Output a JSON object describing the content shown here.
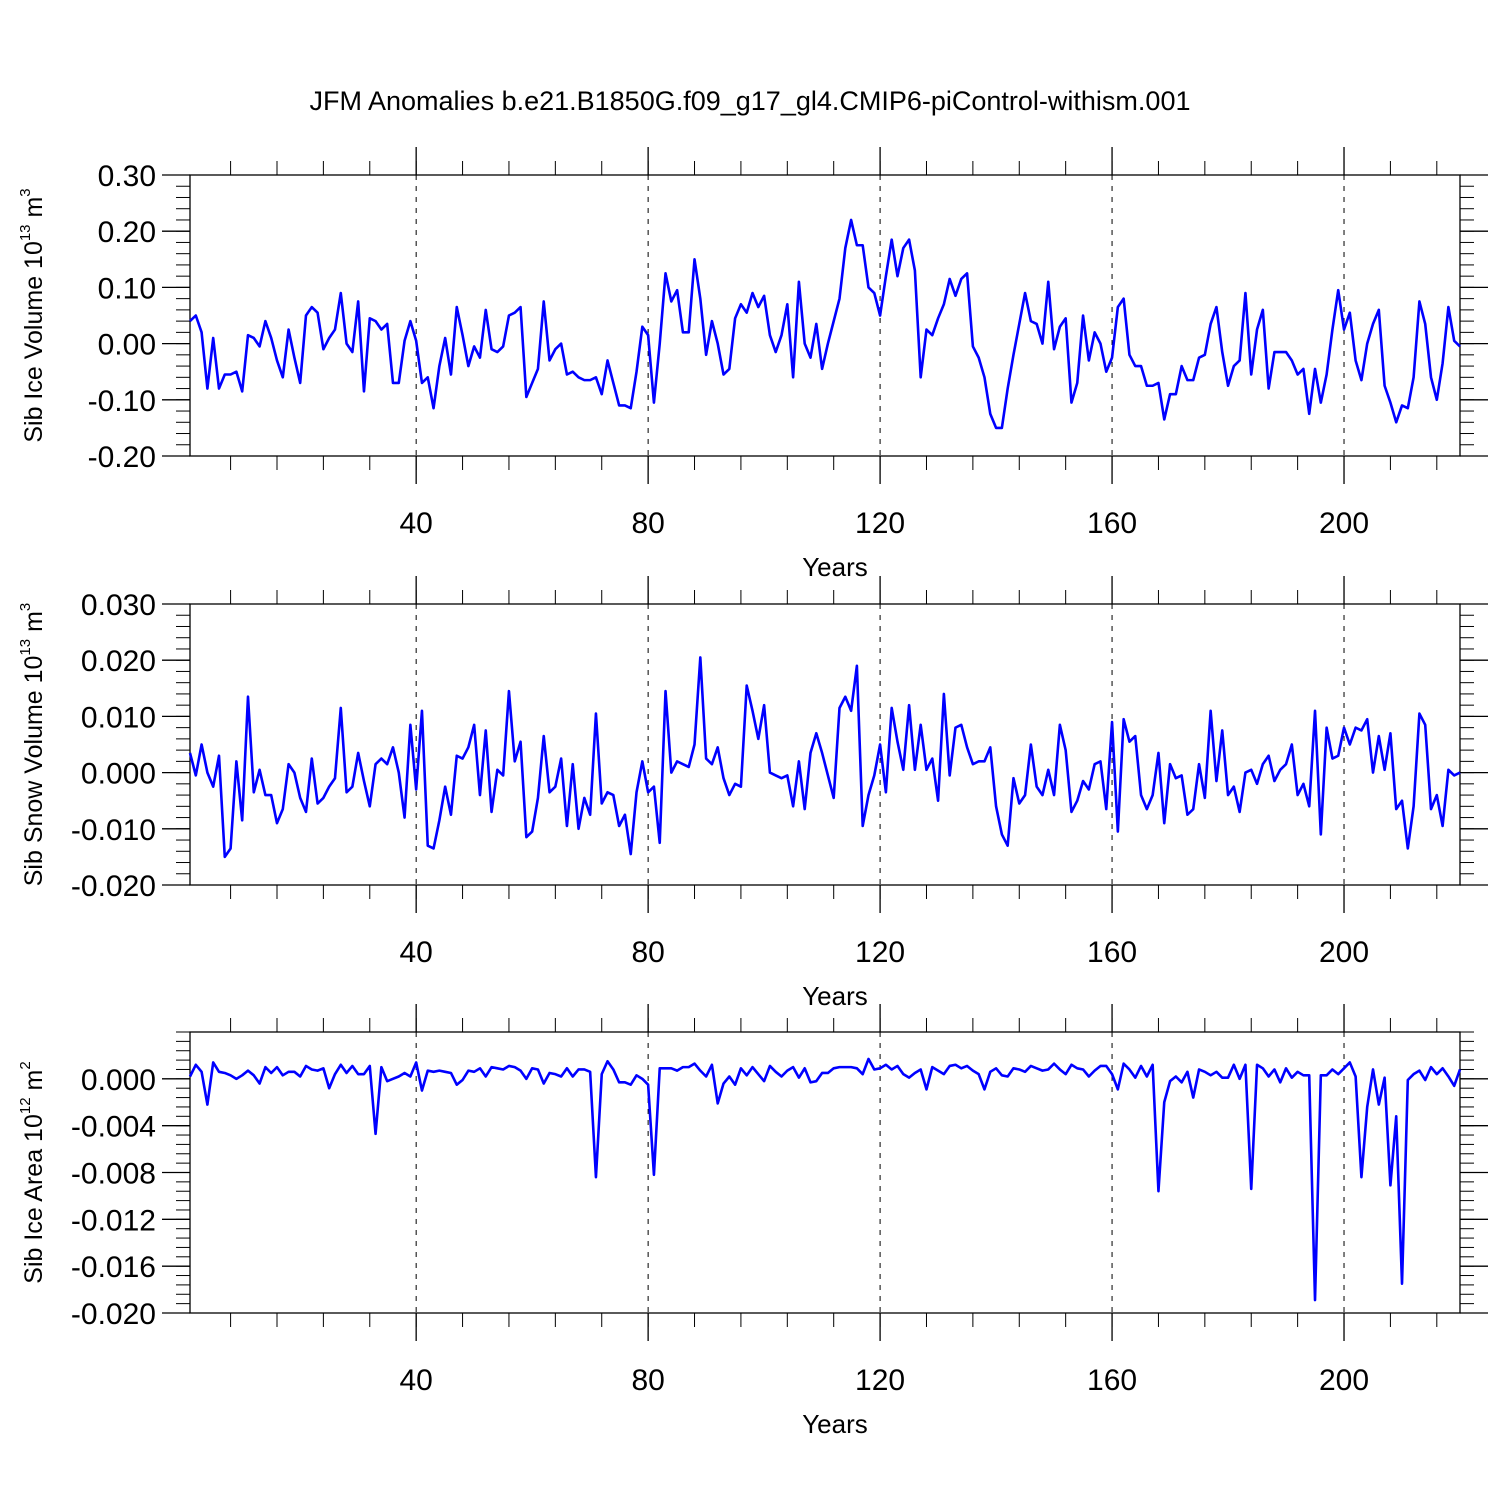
{
  "title": "JFM Anomalies b.e21.B1850G.f09_g17_gl4.CMIP6-piControl-withism.001",
  "chart_data": [
    {
      "type": "line",
      "title": "JFM Anomalies b.e21.B1850G.f09_g17_gl4.CMIP6-piControl-withism.001",
      "xlabel": "Years",
      "ylabel": {
        "base": "Sib Ice Volume 10",
        "exp": "13",
        "unit": " m",
        "unit_exp": "3"
      },
      "xlim": [
        1,
        220
      ],
      "ylim": [
        -0.2,
        0.3
      ],
      "xticks": [
        40,
        80,
        120,
        160,
        200
      ],
      "xtick_labels": [
        "40",
        "80",
        "120",
        "160",
        "200"
      ],
      "yticks": [
        -0.2,
        -0.1,
        0.0,
        0.1,
        0.2,
        0.3
      ],
      "ytick_labels": [
        "-0.20",
        "-0.10",
        "0.00",
        "0.10",
        "0.20",
        "0.30"
      ],
      "yminor_step": 0.02,
      "xminor_step": 8,
      "grid": "vertical-dashed",
      "color": "#0000ff",
      "x_start": 1,
      "values": [
        0.04,
        0.05,
        0.02,
        -0.08,
        0.01,
        -0.08,
        -0.055,
        -0.055,
        -0.05,
        -0.085,
        0.015,
        0.01,
        -0.005,
        0.04,
        0.01,
        -0.03,
        -0.06,
        0.025,
        -0.025,
        -0.07,
        0.05,
        0.065,
        0.055,
        -0.01,
        0.01,
        0.025,
        0.09,
        0.0,
        -0.015,
        0.075,
        -0.085,
        0.045,
        0.04,
        0.025,
        0.035,
        -0.07,
        -0.07,
        0.005,
        0.04,
        0.005,
        -0.07,
        -0.06,
        -0.115,
        -0.04,
        0.01,
        -0.055,
        0.065,
        0.015,
        -0.04,
        -0.005,
        -0.025,
        0.06,
        -0.01,
        -0.015,
        -0.005,
        0.05,
        0.055,
        0.065,
        -0.095,
        -0.07,
        -0.045,
        0.075,
        -0.03,
        -0.01,
        0.0,
        -0.055,
        -0.05,
        -0.06,
        -0.065,
        -0.065,
        -0.06,
        -0.09,
        -0.03,
        -0.07,
        -0.11,
        -0.11,
        -0.115,
        -0.05,
        0.03,
        0.015,
        -0.105,
        0.0,
        0.125,
        0.075,
        0.095,
        0.02,
        0.02,
        0.15,
        0.08,
        -0.02,
        0.04,
        0.0,
        -0.055,
        -0.045,
        0.045,
        0.07,
        0.055,
        0.09,
        0.065,
        0.085,
        0.015,
        -0.015,
        0.015,
        0.07,
        -0.06,
        0.11,
        0.0,
        -0.025,
        0.035,
        -0.045,
        0.0,
        0.04,
        0.08,
        0.17,
        0.22,
        0.175,
        0.175,
        0.1,
        0.09,
        0.05,
        0.12,
        0.185,
        0.12,
        0.17,
        0.185,
        0.13,
        -0.06,
        0.025,
        0.015,
        0.045,
        0.07,
        0.115,
        0.085,
        0.115,
        0.125,
        -0.005,
        -0.025,
        -0.06,
        -0.125,
        -0.15,
        -0.15,
        -0.08,
        -0.02,
        0.035,
        0.09,
        0.04,
        0.035,
        0.0,
        0.11,
        -0.01,
        0.03,
        0.045,
        -0.105,
        -0.07,
        0.05,
        -0.03,
        0.02,
        0.0,
        -0.05,
        -0.025,
        0.065,
        0.08,
        -0.02,
        -0.04,
        -0.04,
        -0.075,
        -0.075,
        -0.07,
        -0.135,
        -0.09,
        -0.09,
        -0.04,
        -0.065,
        -0.065,
        -0.025,
        -0.02,
        0.035,
        0.065,
        -0.015,
        -0.075,
        -0.04,
        -0.03,
        0.09,
        -0.055,
        0.025,
        0.06,
        -0.08,
        -0.015,
        -0.015,
        -0.015,
        -0.03,
        -0.055,
        -0.045,
        -0.125,
        -0.045,
        -0.105,
        -0.055,
        0.025,
        0.095,
        0.025,
        0.055,
        -0.03,
        -0.065,
        0.0,
        0.035,
        0.06,
        -0.075,
        -0.105,
        -0.14,
        -0.11,
        -0.115,
        -0.06,
        0.075,
        0.035,
        -0.06,
        -0.1,
        -0.035,
        0.065,
        0.005,
        -0.005
      ]
    },
    {
      "type": "line",
      "xlabel": "Years",
      "ylabel": {
        "base": "Sib Snow Volume 10",
        "exp": "13",
        "unit": " m",
        "unit_exp": "3"
      },
      "xlim": [
        1,
        220
      ],
      "ylim": [
        -0.02,
        0.03
      ],
      "xticks": [
        40,
        80,
        120,
        160,
        200
      ],
      "xtick_labels": [
        "40",
        "80",
        "120",
        "160",
        "200"
      ],
      "yticks": [
        -0.02,
        -0.01,
        0.0,
        0.01,
        0.02,
        0.03
      ],
      "ytick_labels": [
        "-0.020",
        "-0.010",
        "0.000",
        "0.010",
        "0.020",
        "0.030"
      ],
      "yminor_step": 0.002,
      "xminor_step": 8,
      "grid": "vertical-dashed",
      "color": "#0000ff",
      "x_start": 1,
      "values": [
        0.0035,
        -0.0005,
        0.005,
        0.0,
        -0.0025,
        0.003,
        -0.015,
        -0.0135,
        0.002,
        -0.0085,
        0.0135,
        -0.0035,
        0.0005,
        -0.004,
        -0.004,
        -0.009,
        -0.0065,
        0.0015,
        0.0,
        -0.0045,
        -0.007,
        0.0025,
        -0.0055,
        -0.0045,
        -0.0025,
        -0.001,
        0.0115,
        -0.0035,
        -0.0025,
        0.0035,
        -0.0015,
        -0.006,
        0.0015,
        0.0025,
        0.0015,
        0.0045,
        0.0,
        -0.008,
        0.0085,
        -0.003,
        0.011,
        -0.013,
        -0.0135,
        -0.0085,
        -0.0025,
        -0.0075,
        0.003,
        0.0025,
        0.0045,
        0.0085,
        -0.004,
        0.0075,
        -0.007,
        0.0005,
        -0.0005,
        0.0145,
        0.002,
        0.0055,
        -0.0115,
        -0.0105,
        -0.0045,
        0.0065,
        -0.0035,
        -0.0025,
        0.0025,
        -0.0095,
        0.0015,
        -0.01,
        -0.0045,
        -0.0075,
        0.0105,
        -0.0055,
        -0.0035,
        -0.004,
        -0.0095,
        -0.0075,
        -0.0145,
        -0.0035,
        0.002,
        -0.0035,
        -0.0025,
        -0.0125,
        0.0145,
        0.0,
        0.002,
        0.0015,
        0.001,
        0.005,
        0.0205,
        0.0025,
        0.0015,
        0.0045,
        -0.001,
        -0.004,
        -0.002,
        -0.0025,
        0.0155,
        0.011,
        0.006,
        0.012,
        0.0,
        -0.0005,
        -0.001,
        -0.0005,
        -0.006,
        0.002,
        -0.0065,
        0.0035,
        0.007,
        0.0035,
        -0.0005,
        -0.0045,
        0.0115,
        0.0135,
        0.011,
        0.019,
        -0.0095,
        -0.004,
        -0.0005,
        0.005,
        -0.0035,
        0.0115,
        0.0055,
        0.0005,
        0.012,
        0.0005,
        0.0085,
        0.0005,
        0.0025,
        -0.005,
        0.014,
        -0.0005,
        0.008,
        0.0085,
        0.0045,
        0.0015,
        0.002,
        0.002,
        0.0045,
        -0.006,
        -0.011,
        -0.013,
        -0.001,
        -0.0055,
        -0.004,
        0.005,
        -0.0025,
        -0.004,
        0.0005,
        -0.004,
        0.0085,
        0.004,
        -0.007,
        -0.005,
        -0.0015,
        -0.003,
        0.0015,
        0.002,
        -0.0065,
        0.009,
        -0.0105,
        0.0095,
        0.0055,
        0.0065,
        -0.004,
        -0.0065,
        -0.004,
        0.0035,
        -0.009,
        0.0015,
        -0.001,
        -0.0005,
        -0.0075,
        -0.0065,
        0.0015,
        -0.0045,
        0.011,
        -0.0015,
        0.0075,
        -0.004,
        -0.0025,
        -0.007,
        0.0,
        0.0005,
        -0.002,
        0.0015,
        0.003,
        -0.0015,
        0.0005,
        0.0015,
        0.005,
        -0.004,
        -0.002,
        -0.006,
        0.011,
        -0.011,
        0.008,
        0.0025,
        0.003,
        0.008,
        0.005,
        0.008,
        0.0075,
        0.0095,
        0.0,
        0.0065,
        0.0005,
        0.007,
        -0.0065,
        -0.005,
        -0.0135,
        -0.006,
        0.0105,
        0.0085,
        -0.0065,
        -0.004,
        -0.0095,
        0.0005,
        -0.0005,
        0.0
      ]
    },
    {
      "type": "line",
      "xlabel": "Years",
      "ylabel": {
        "base": "Sib Ice Area 10",
        "exp": "12",
        "unit": " m",
        "unit_exp": "2"
      },
      "xlim": [
        1,
        220
      ],
      "ylim": [
        -0.02,
        0.004
      ],
      "xticks": [
        40,
        80,
        120,
        160,
        200
      ],
      "xtick_labels": [
        "40",
        "80",
        "120",
        "160",
        "200"
      ],
      "yticks": [
        -0.02,
        -0.016,
        -0.012,
        -0.008,
        -0.004,
        0.0
      ],
      "ytick_labels": [
        "-0.020",
        "-0.016",
        "-0.012",
        "-0.008",
        "-0.004",
        "0.000"
      ],
      "yminor_step": 0.0008,
      "xminor_step": 8,
      "grid": "vertical-dashed",
      "color": "#0000ff",
      "x_start": 1,
      "values": [
        0.0002,
        0.0012,
        0.0006,
        -0.0022,
        0.0014,
        0.0006,
        0.0005,
        0.0003,
        0.0,
        0.0003,
        0.0007,
        0.0003,
        -0.0004,
        0.001,
        0.0005,
        0.001,
        0.0003,
        0.0006,
        0.0006,
        0.0002,
        0.0011,
        0.0008,
        0.0007,
        0.0009,
        -0.0008,
        0.0004,
        0.0012,
        0.0005,
        0.0011,
        0.0004,
        0.0004,
        0.0011,
        -0.0047,
        0.001,
        -0.0002,
        0.0,
        0.0002,
        0.0005,
        0.0002,
        0.0014,
        -0.001,
        0.0007,
        0.0006,
        0.0007,
        0.0006,
        0.0005,
        -0.0005,
        -0.0001,
        0.0007,
        0.0006,
        0.0009,
        0.0002,
        0.001,
        0.0009,
        0.0008,
        0.0011,
        0.001,
        0.0007,
        0.0,
        0.0009,
        0.0008,
        -0.0004,
        0.0005,
        0.0004,
        0.0002,
        0.0009,
        0.0002,
        0.0008,
        0.0008,
        0.0006,
        -0.0084,
        0.0004,
        0.0015,
        0.0008,
        -0.0003,
        -0.0003,
        -0.0005,
        0.0003,
        0.0,
        -0.0005,
        -0.0082,
        0.0009,
        0.0009,
        0.0009,
        0.0007,
        0.001,
        0.001,
        0.0013,
        0.0007,
        0.0002,
        0.0012,
        -0.0021,
        -0.0004,
        0.0002,
        -0.0005,
        0.0009,
        0.0003,
        0.001,
        0.0004,
        -0.0002,
        0.0011,
        0.0006,
        0.0002,
        0.0007,
        0.001,
        0.0001,
        0.0009,
        -0.0003,
        -0.0002,
        0.0005,
        0.0005,
        0.0009,
        0.001,
        0.001,
        0.001,
        0.0009,
        0.0004,
        0.0017,
        0.0008,
        0.0009,
        0.0012,
        0.0008,
        0.0011,
        0.0004,
        0.0001,
        0.0005,
        0.0008,
        -0.0009,
        0.001,
        0.0007,
        0.0004,
        0.0011,
        0.0012,
        0.0009,
        0.0011,
        0.0007,
        0.0004,
        -0.0009,
        0.0006,
        0.0009,
        0.0003,
        0.0002,
        0.0009,
        0.0008,
        0.0006,
        0.0011,
        0.0009,
        0.0007,
        0.0008,
        0.0013,
        0.0008,
        0.0004,
        0.0012,
        0.0009,
        0.0008,
        0.0002,
        0.0007,
        0.0011,
        0.0011,
        0.0004,
        -0.0009,
        0.0013,
        0.0008,
        0.0001,
        0.0011,
        0.0002,
        0.0012,
        -0.0096,
        -0.002,
        -0.0002,
        0.0002,
        -0.0003,
        0.0006,
        -0.0016,
        0.0008,
        0.0006,
        0.0003,
        0.0006,
        0.0001,
        0.0001,
        0.0012,
        0.0,
        0.0012,
        -0.0094,
        0.0012,
        0.0009,
        0.0002,
        0.0008,
        -0.0003,
        0.0009,
        0.0001,
        0.0006,
        0.0003,
        0.0003,
        -0.0189,
        0.0003,
        0.0003,
        0.0008,
        0.0004,
        0.0009,
        0.0014,
        0.0002,
        -0.0084,
        -0.0024,
        0.0008,
        -0.0022,
        0.0001,
        -0.0091,
        -0.0032,
        -0.0175,
        -0.0001,
        0.0004,
        0.0007,
        -0.0001,
        0.001,
        0.0004,
        0.0009,
        0.0002,
        -0.0006,
        0.0008
      ]
    }
  ]
}
